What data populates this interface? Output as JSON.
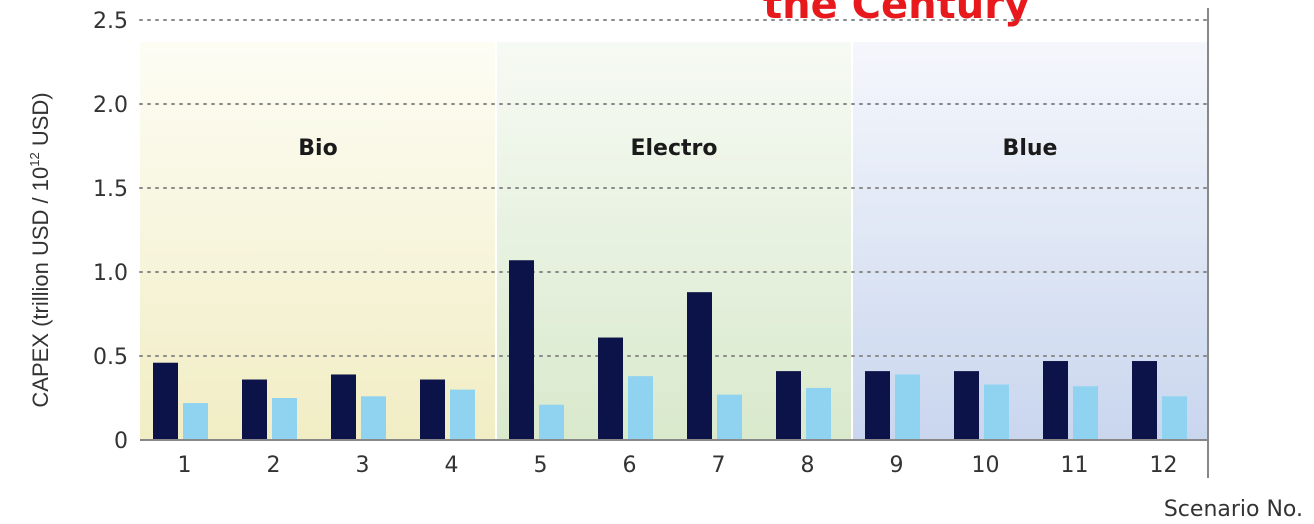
{
  "chart_data": {
    "type": "bar",
    "title_fragment": "the Century",
    "xlabel": "Scenario No.",
    "ylabel_main": "CAPEX (trillion USD / 10",
    "ylabel_sup": "12",
    "ylabel_tail": " USD)",
    "ylim": [
      0,
      2.5
    ],
    "yticks": [
      {
        "value": 0,
        "label": "0"
      },
      {
        "value": 0.5,
        "label": "0.5"
      },
      {
        "value": 1.0,
        "label": "1.0"
      },
      {
        "value": 1.5,
        "label": "1.5"
      },
      {
        "value": 2.0,
        "label": "2.0"
      },
      {
        "value": 2.5,
        "label": "2.5"
      }
    ],
    "grid": "dotted-horizontal",
    "categories": [
      "1",
      "2",
      "3",
      "4",
      "5",
      "6",
      "7",
      "8",
      "9",
      "10",
      "11",
      "12"
    ],
    "series": [
      {
        "color": "#0c1348",
        "values": [
          0.46,
          0.36,
          0.39,
          0.36,
          1.07,
          0.61,
          0.88,
          0.41,
          0.41,
          0.41,
          0.47,
          0.47
        ]
      },
      {
        "color": "#8fd3f1",
        "values": [
          0.22,
          0.25,
          0.26,
          0.3,
          0.21,
          0.38,
          0.27,
          0.31,
          0.39,
          0.33,
          0.32,
          0.26
        ]
      }
    ],
    "regions": [
      {
        "label": "Bio",
        "from": 1,
        "to": 4,
        "color_top": "#fdfdf5",
        "color_bottom": "#f1edc4"
      },
      {
        "label": "Electro",
        "from": 5,
        "to": 8,
        "color_top": "#f6faf4",
        "color_bottom": "#d9e9cc"
      },
      {
        "label": "Blue",
        "from": 9,
        "to": 12,
        "color_top": "#f5f7fc",
        "color_bottom": "#c9d6ee"
      }
    ]
  }
}
